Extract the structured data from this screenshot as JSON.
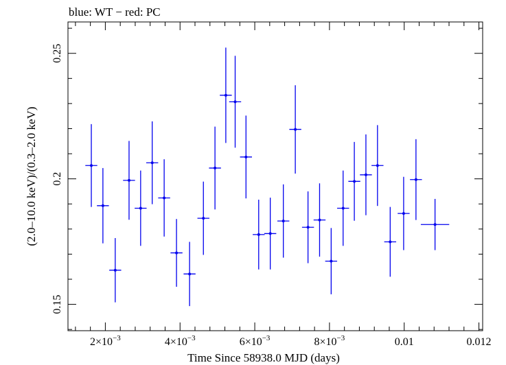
{
  "chart_data": {
    "type": "scatter",
    "title": "blue: WT − red: PC",
    "xlabel": "Time Since 58938.0 MJD (days)",
    "ylabel": "(2.0–10.0 keV)/(0.3–2.0 keV)",
    "xlim": [
      0.001,
      0.0121
    ],
    "ylim": [
      0.1395,
      0.2625
    ],
    "x_ticks": [
      {
        "value": 0.002,
        "base": "2×10",
        "exp": "−3"
      },
      {
        "value": 0.004,
        "base": "4×10",
        "exp": "−3"
      },
      {
        "value": 0.006,
        "base": "6×10",
        "exp": "−3"
      },
      {
        "value": 0.008,
        "base": "8×10",
        "exp": "−3"
      },
      {
        "value": 0.01,
        "base": "0.01",
        "exp": ""
      },
      {
        "value": 0.012,
        "base": "0.012",
        "exp": ""
      }
    ],
    "y_ticks": [
      {
        "value": 0.15,
        "label": "0.15"
      },
      {
        "value": 0.2,
        "label": "0.2"
      },
      {
        "value": 0.25,
        "label": "0.25"
      }
    ],
    "series": [
      {
        "color": "#0000ee",
        "points": [
          {
            "x": 0.001625,
            "xerr": 0.00016,
            "y": 0.2053,
            "yerr_lo": 0.0165,
            "yerr_hi": 0.0165
          },
          {
            "x": 0.001935,
            "xerr": 0.00016,
            "y": 0.1893,
            "yerr_lo": 0.015,
            "yerr_hi": 0.015
          },
          {
            "x": 0.002265,
            "xerr": 0.00016,
            "y": 0.1636,
            "yerr_lo": 0.0128,
            "yerr_hi": 0.0128
          },
          {
            "x": 0.002635,
            "xerr": 0.00016,
            "y": 0.1994,
            "yerr_lo": 0.0157,
            "yerr_hi": 0.0157
          },
          {
            "x": 0.002945,
            "xerr": 0.00016,
            "y": 0.1883,
            "yerr_lo": 0.015,
            "yerr_hi": 0.015
          },
          {
            "x": 0.003255,
            "xerr": 0.00016,
            "y": 0.2064,
            "yerr_lo": 0.0165,
            "yerr_hi": 0.0165
          },
          {
            "x": 0.003575,
            "xerr": 0.00016,
            "y": 0.1924,
            "yerr_lo": 0.0154,
            "yerr_hi": 0.0154
          },
          {
            "x": 0.003905,
            "xerr": 0.00016,
            "y": 0.1705,
            "yerr_lo": 0.0135,
            "yerr_hi": 0.0135
          },
          {
            "x": 0.004255,
            "xerr": 0.00016,
            "y": 0.1621,
            "yerr_lo": 0.0128,
            "yerr_hi": 0.0128
          },
          {
            "x": 0.004625,
            "xerr": 0.00016,
            "y": 0.1843,
            "yerr_lo": 0.0146,
            "yerr_hi": 0.0146
          },
          {
            "x": 0.004935,
            "xerr": 0.00016,
            "y": 0.2043,
            "yerr_lo": 0.0165,
            "yerr_hi": 0.0165
          },
          {
            "x": 0.005225,
            "xerr": 0.00016,
            "y": 0.2333,
            "yerr_lo": 0.019,
            "yerr_hi": 0.019
          },
          {
            "x": 0.005475,
            "xerr": 0.00016,
            "y": 0.2307,
            "yerr_lo": 0.0183,
            "yerr_hi": 0.0183
          },
          {
            "x": 0.005765,
            "xerr": 0.00016,
            "y": 0.2087,
            "yerr_lo": 0.0165,
            "yerr_hi": 0.0165
          },
          {
            "x": 0.006105,
            "xerr": 0.00016,
            "y": 0.1778,
            "yerr_lo": 0.0139,
            "yerr_hi": 0.0139
          },
          {
            "x": 0.006415,
            "xerr": 0.00016,
            "y": 0.1782,
            "yerr_lo": 0.0143,
            "yerr_hi": 0.0143
          },
          {
            "x": 0.006765,
            "xerr": 0.00016,
            "y": 0.1832,
            "yerr_lo": 0.0146,
            "yerr_hi": 0.0146
          },
          {
            "x": 0.007085,
            "xerr": 0.00016,
            "y": 0.2197,
            "yerr_lo": 0.0176,
            "yerr_hi": 0.0176
          },
          {
            "x": 0.007425,
            "xerr": 0.00016,
            "y": 0.1807,
            "yerr_lo": 0.0143,
            "yerr_hi": 0.0143
          },
          {
            "x": 0.007735,
            "xerr": 0.00016,
            "y": 0.1836,
            "yerr_lo": 0.0146,
            "yerr_hi": 0.0146
          },
          {
            "x": 0.008045,
            "xerr": 0.00016,
            "y": 0.1672,
            "yerr_lo": 0.0132,
            "yerr_hi": 0.0132
          },
          {
            "x": 0.008365,
            "xerr": 0.00016,
            "y": 0.1883,
            "yerr_lo": 0.015,
            "yerr_hi": 0.015
          },
          {
            "x": 0.008665,
            "xerr": 0.00016,
            "y": 0.199,
            "yerr_lo": 0.0157,
            "yerr_hi": 0.0157
          },
          {
            "x": 0.008975,
            "xerr": 0.00016,
            "y": 0.2016,
            "yerr_lo": 0.0161,
            "yerr_hi": 0.0161
          },
          {
            "x": 0.009285,
            "xerr": 0.00016,
            "y": 0.2053,
            "yerr_lo": 0.0161,
            "yerr_hi": 0.0161
          },
          {
            "x": 0.009625,
            "xerr": 0.00016,
            "y": 0.1749,
            "yerr_lo": 0.0139,
            "yerr_hi": 0.0139
          },
          {
            "x": 0.009985,
            "xerr": 0.00016,
            "y": 0.1862,
            "yerr_lo": 0.0146,
            "yerr_hi": 0.0146
          },
          {
            "x": 0.010315,
            "xerr": 0.00016,
            "y": 0.1997,
            "yerr_lo": 0.0161,
            "yerr_hi": 0.0161
          },
          {
            "x": 0.010825,
            "xerr": 0.00038,
            "y": 0.1818,
            "yerr_lo": 0.0102,
            "yerr_hi": 0.0102
          }
        ]
      }
    ]
  }
}
